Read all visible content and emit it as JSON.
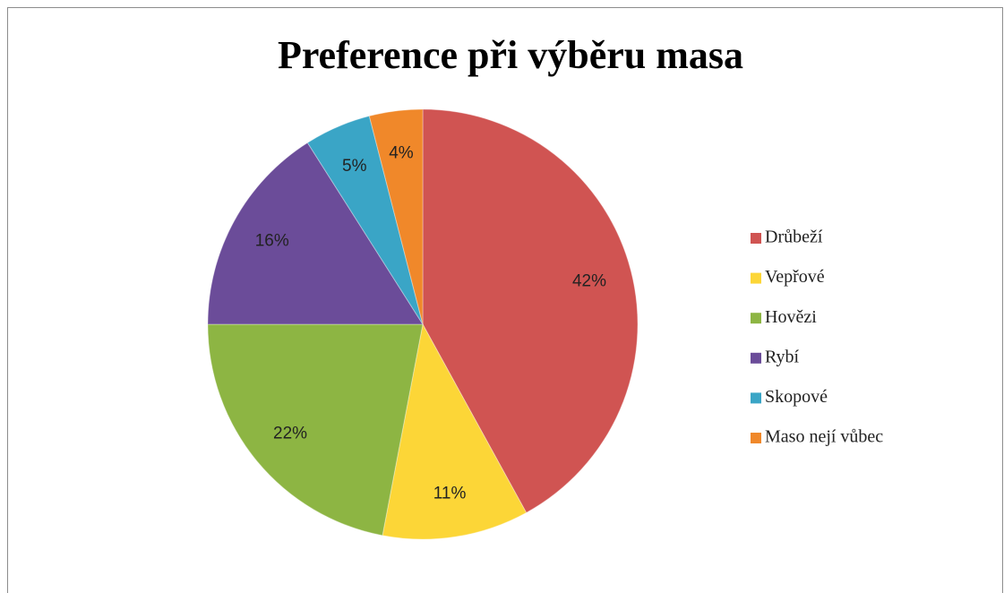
{
  "chart_data": {
    "type": "pie",
    "title": "Preference při výběru masa",
    "categories": [
      "Drůbeží",
      "Vepřové",
      "Hovězi",
      "Rybí",
      "Skopové",
      "Maso nejí vůbec"
    ],
    "values": [
      42,
      11,
      22,
      16,
      5,
      4
    ],
    "value_labels": [
      "42%",
      "11%",
      "22%",
      "16%",
      "5%",
      "4%"
    ],
    "colors": [
      "#d05452",
      "#fcd637",
      "#8db543",
      "#6b4c99",
      "#3aa5c6",
      "#f0882a"
    ],
    "legend": "right"
  }
}
